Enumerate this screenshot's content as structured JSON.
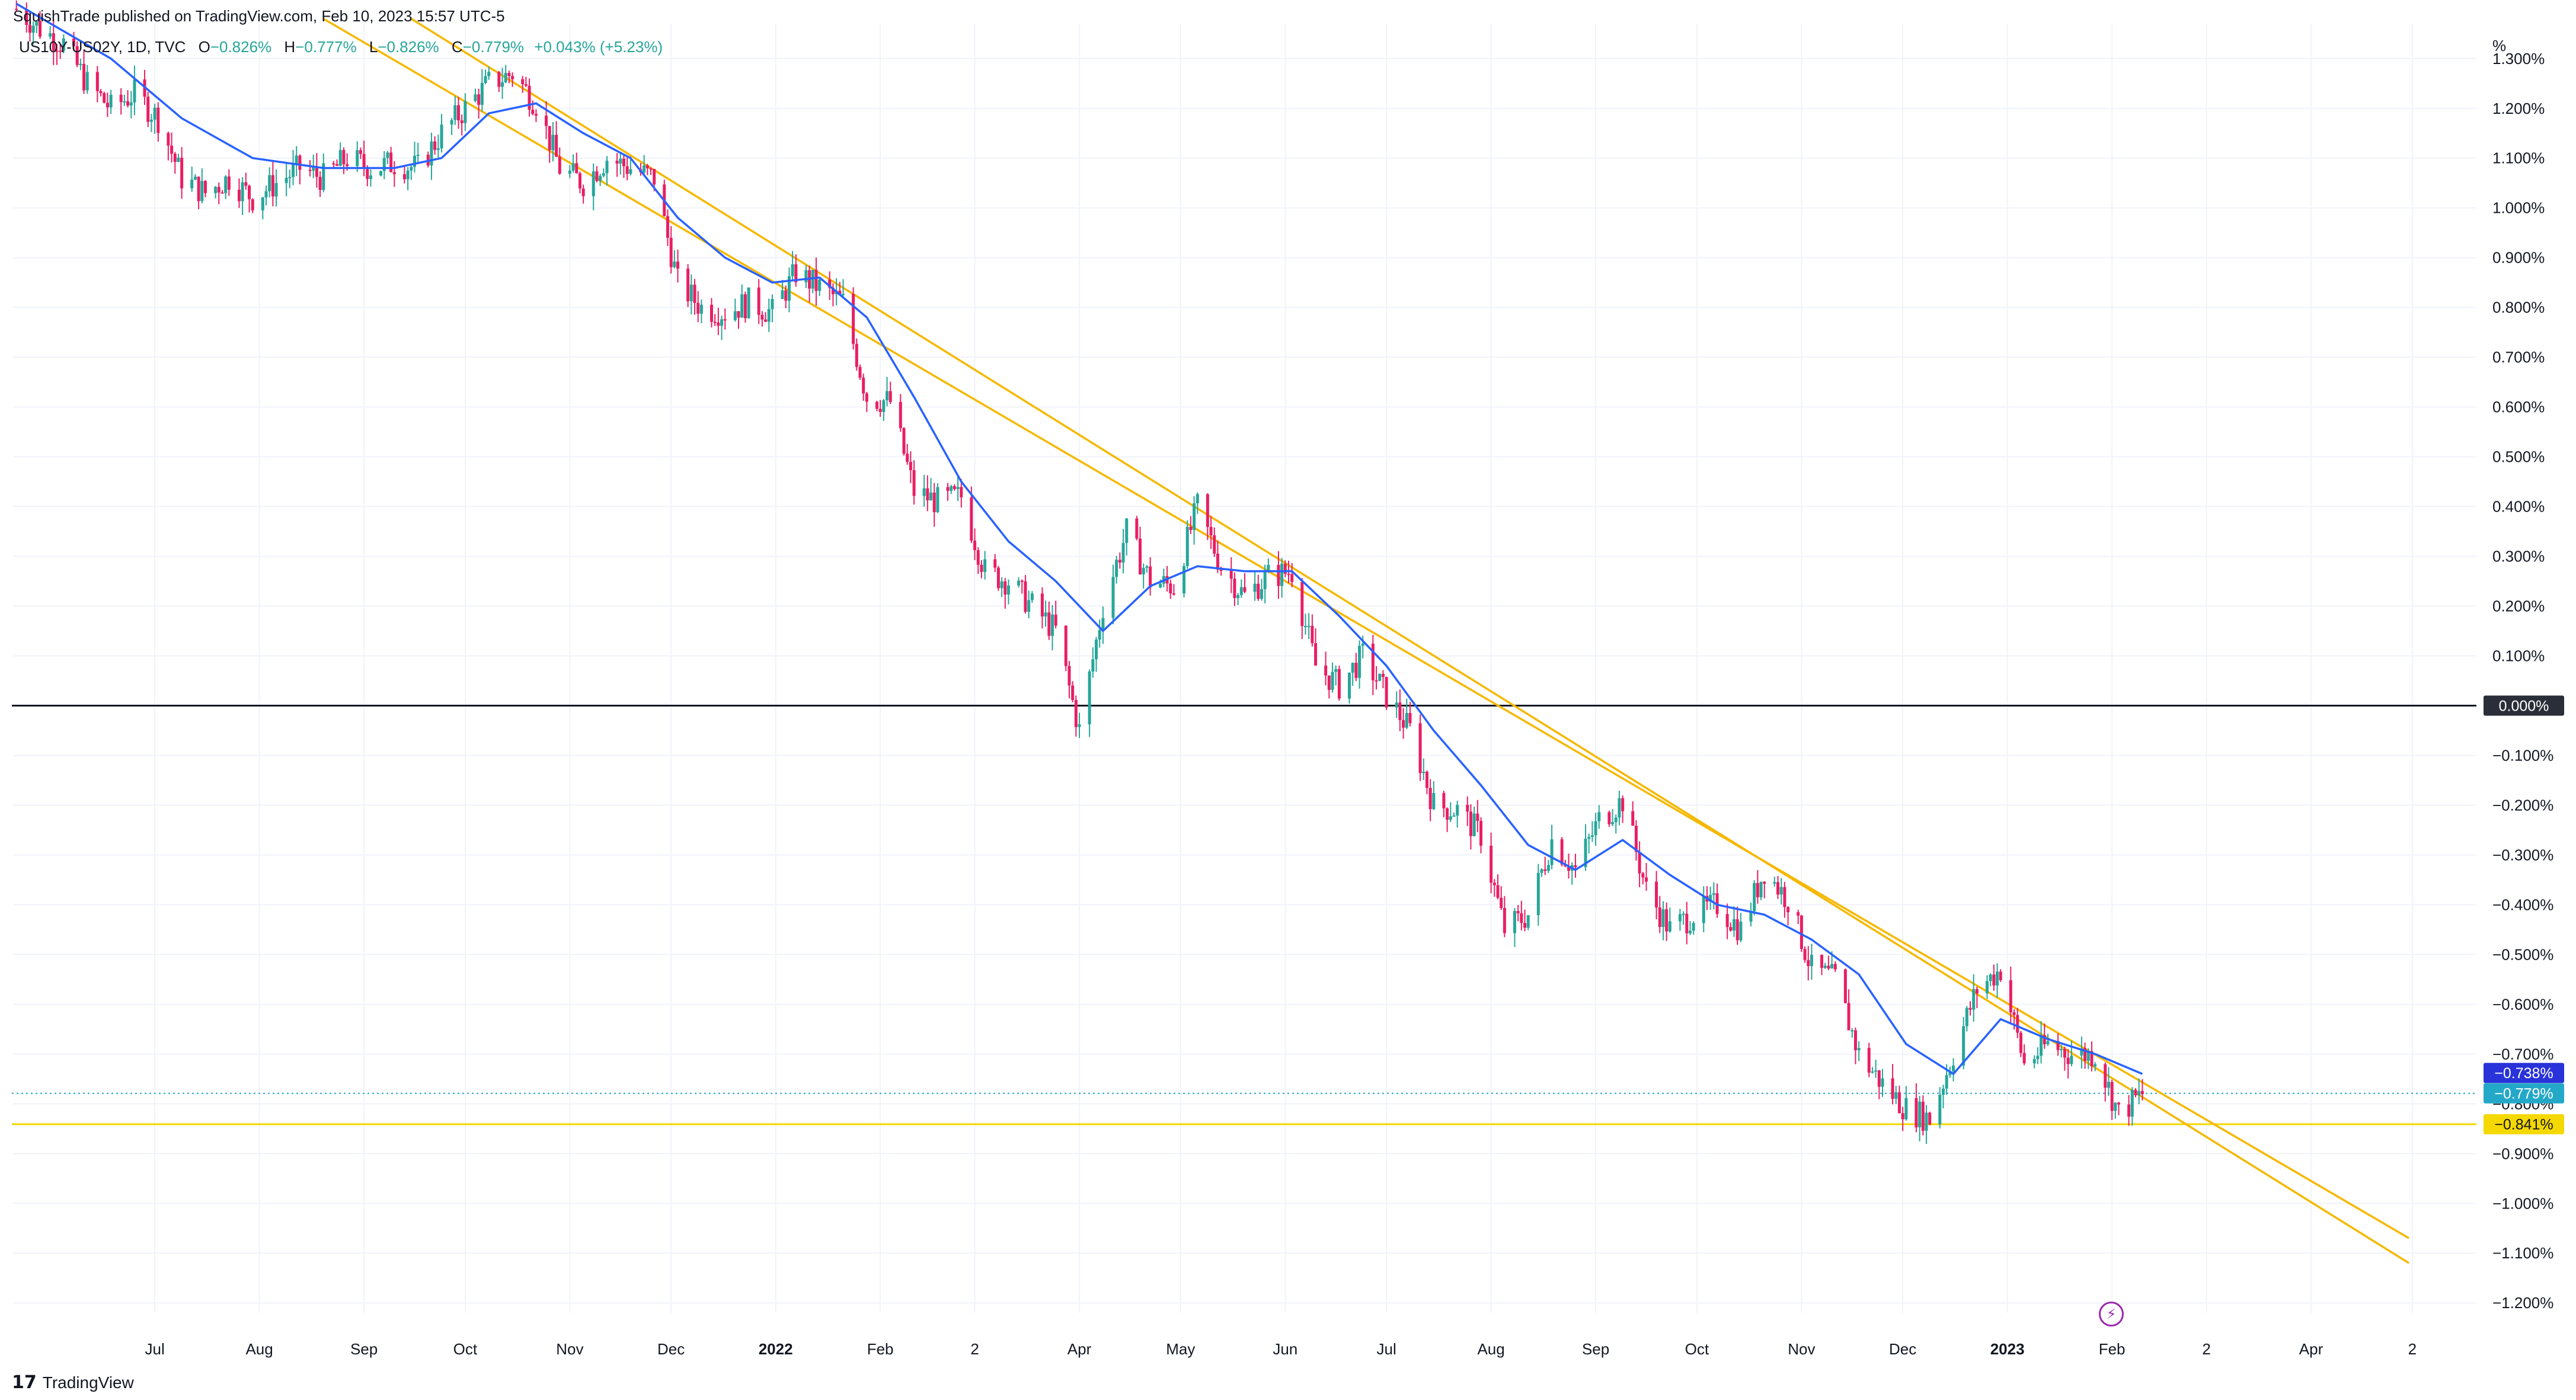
{
  "header": {
    "published": "SquishTrade published on TradingView.com, Feb 10, 2023 15:57 UTC-5"
  },
  "legend": {
    "symbol": "US10Y-US02Y, 1D, TVC",
    "o_label": "O",
    "o_value": "−0.826%",
    "h_label": "H",
    "h_value": "−0.777%",
    "l_label": "L",
    "l_value": "−0.826%",
    "c_label": "C",
    "c_value": "−0.779%",
    "change": "+0.043% (+5.23%)"
  },
  "footer": {
    "brand": "TradingView"
  },
  "icons": {
    "brand_icon": "tradingview-logo",
    "alert_icon": "lightning-bolt-icon"
  },
  "colors": {
    "up": "#26a69a",
    "down": "#e91e63",
    "ma": "#2962ff",
    "trendline": "#f5b800",
    "support": "#f5d800",
    "zero": "#131722",
    "ma_badge": "#2933d9",
    "price_badge": "#24a8c8"
  },
  "chart_data": {
    "type": "candlestick",
    "title": "",
    "unit_label": "%",
    "ylim": [
      -1.22,
      1.37
    ],
    "xlim": [
      "2021-05-20",
      "2023-05-20"
    ],
    "y_ticks": [
      "1.300%",
      "1.200%",
      "1.100%",
      "1.000%",
      "0.900%",
      "0.800%",
      "0.700%",
      "0.600%",
      "0.500%",
      "0.400%",
      "0.300%",
      "0.200%",
      "0.100%",
      "−0.100%",
      "−0.200%",
      "−0.300%",
      "−0.400%",
      "−0.500%",
      "−0.600%",
      "−0.700%",
      "−0.800%",
      "−0.900%",
      "−1.000%",
      "−1.100%",
      "−1.200%"
    ],
    "y_tick_values": [
      1.3,
      1.2,
      1.1,
      1.0,
      0.9,
      0.8,
      0.7,
      0.6,
      0.5,
      0.4,
      0.3,
      0.2,
      0.1,
      -0.1,
      -0.2,
      -0.3,
      -0.4,
      -0.5,
      -0.6,
      -0.7,
      -0.8,
      -0.9,
      -1.0,
      -1.1,
      -1.2
    ],
    "x_ticks": [
      {
        "label": "Jul",
        "date": "2021-07-01",
        "bold": false
      },
      {
        "label": "Aug",
        "date": "2021-08-01",
        "bold": false
      },
      {
        "label": "Sep",
        "date": "2021-09-01",
        "bold": false
      },
      {
        "label": "Oct",
        "date": "2021-10-01",
        "bold": false
      },
      {
        "label": "Nov",
        "date": "2021-11-01",
        "bold": false
      },
      {
        "label": "Dec",
        "date": "2021-12-01",
        "bold": false
      },
      {
        "label": "2022",
        "date": "2022-01-01",
        "bold": true
      },
      {
        "label": "Feb",
        "date": "2022-02-01",
        "bold": false
      },
      {
        "label": "2",
        "date": "2022-03-01",
        "bold": false
      },
      {
        "label": "Apr",
        "date": "2022-04-01",
        "bold": false
      },
      {
        "label": "May",
        "date": "2022-05-01",
        "bold": false
      },
      {
        "label": "Jun",
        "date": "2022-06-01",
        "bold": false
      },
      {
        "label": "Jul",
        "date": "2022-07-01",
        "bold": false
      },
      {
        "label": "Aug",
        "date": "2022-08-01",
        "bold": false
      },
      {
        "label": "Sep",
        "date": "2022-09-01",
        "bold": false
      },
      {
        "label": "Oct",
        "date": "2022-10-01",
        "bold": false
      },
      {
        "label": "Nov",
        "date": "2022-11-01",
        "bold": false
      },
      {
        "label": "Dec",
        "date": "2022-12-01",
        "bold": false
      },
      {
        "label": "2023",
        "date": "2023-01-01",
        "bold": true
      },
      {
        "label": "Feb",
        "date": "2023-02-01",
        "bold": false
      },
      {
        "label": "2",
        "date": "2023-03-01",
        "bold": false
      },
      {
        "label": "Apr",
        "date": "2023-04-01",
        "bold": false
      },
      {
        "label": "2",
        "date": "2023-05-01",
        "bold": false
      }
    ],
    "price_path": [
      [
        "2021-05-21",
        1.4
      ],
      [
        "2021-05-28",
        1.36
      ],
      [
        "2021-06-04",
        1.33
      ],
      [
        "2021-06-11",
        1.25
      ],
      [
        "2021-06-18",
        1.2
      ],
      [
        "2021-06-25",
        1.23
      ],
      [
        "2021-07-02",
        1.18
      ],
      [
        "2021-07-09",
        1.06
      ],
      [
        "2021-07-16",
        1.03
      ],
      [
        "2021-07-23",
        1.06
      ],
      [
        "2021-07-30",
        1.02
      ],
      [
        "2021-08-06",
        1.05
      ],
      [
        "2021-08-13",
        1.08
      ],
      [
        "2021-08-20",
        1.06
      ],
      [
        "2021-08-27",
        1.1
      ],
      [
        "2021-09-03",
        1.08
      ],
      [
        "2021-09-10",
        1.09
      ],
      [
        "2021-09-17",
        1.08
      ],
      [
        "2021-09-24",
        1.15
      ],
      [
        "2021-10-01",
        1.2
      ],
      [
        "2021-10-08",
        1.25
      ],
      [
        "2021-10-15",
        1.27
      ],
      [
        "2021-10-22",
        1.21
      ],
      [
        "2021-10-29",
        1.08
      ],
      [
        "2021-11-05",
        1.05
      ],
      [
        "2021-11-12",
        1.1
      ],
      [
        "2021-11-19",
        1.08
      ],
      [
        "2021-11-26",
        1.06
      ],
      [
        "2021-12-03",
        0.85
      ],
      [
        "2021-12-10",
        0.8
      ],
      [
        "2021-12-17",
        0.79
      ],
      [
        "2021-12-24",
        0.81
      ],
      [
        "2021-12-31",
        0.79
      ],
      [
        "2022-01-07",
        0.87
      ],
      [
        "2022-01-14",
        0.84
      ],
      [
        "2022-01-21",
        0.81
      ],
      [
        "2022-01-28",
        0.62
      ],
      [
        "2022-02-04",
        0.61
      ],
      [
        "2022-02-11",
        0.43
      ],
      [
        "2022-02-18",
        0.41
      ],
      [
        "2022-02-25",
        0.42
      ],
      [
        "2022-03-04",
        0.27
      ],
      [
        "2022-03-11",
        0.25
      ],
      [
        "2022-03-18",
        0.2
      ],
      [
        "2022-03-25",
        0.15
      ],
      [
        "2022-04-01",
        -0.05
      ],
      [
        "2022-04-08",
        0.2
      ],
      [
        "2022-04-15",
        0.35
      ],
      [
        "2022-04-22",
        0.25
      ],
      [
        "2022-04-29",
        0.24
      ],
      [
        "2022-05-06",
        0.4
      ],
      [
        "2022-05-13",
        0.28
      ],
      [
        "2022-05-20",
        0.22
      ],
      [
        "2022-05-27",
        0.26
      ],
      [
        "2022-06-03",
        0.27
      ],
      [
        "2022-06-10",
        0.08
      ],
      [
        "2022-06-17",
        0.04
      ],
      [
        "2022-06-24",
        0.1
      ],
      [
        "2022-07-01",
        0.02
      ],
      [
        "2022-07-08",
        -0.05
      ],
      [
        "2022-07-15",
        -0.2
      ],
      [
        "2022-07-22",
        -0.21
      ],
      [
        "2022-07-29",
        -0.26
      ],
      [
        "2022-08-05",
        -0.45
      ],
      [
        "2022-08-12",
        -0.42
      ],
      [
        "2022-08-19",
        -0.27
      ],
      [
        "2022-08-26",
        -0.33
      ],
      [
        "2022-09-02",
        -0.23
      ],
      [
        "2022-09-09",
        -0.19
      ],
      [
        "2022-09-16",
        -0.37
      ],
      [
        "2022-09-23",
        -0.45
      ],
      [
        "2022-09-30",
        -0.42
      ],
      [
        "2022-10-07",
        -0.4
      ],
      [
        "2022-10-14",
        -0.45
      ],
      [
        "2022-10-21",
        -0.33
      ],
      [
        "2022-10-28",
        -0.39
      ],
      [
        "2022-11-04",
        -0.53
      ],
      [
        "2022-11-11",
        -0.55
      ],
      [
        "2022-11-18",
        -0.7
      ],
      [
        "2022-11-25",
        -0.76
      ],
      [
        "2022-12-02",
        -0.81
      ],
      [
        "2022-12-09",
        -0.83
      ],
      [
        "2022-12-16",
        -0.7
      ],
      [
        "2022-12-23",
        -0.57
      ],
      [
        "2022-12-30",
        -0.53
      ],
      [
        "2023-01-06",
        -0.72
      ],
      [
        "2023-01-13",
        -0.68
      ],
      [
        "2023-01-20",
        -0.7
      ],
      [
        "2023-01-27",
        -0.7
      ],
      [
        "2023-02-03",
        -0.82
      ],
      [
        "2023-02-10",
        -0.78
      ]
    ],
    "moving_average": [
      [
        "2021-05-21",
        1.41
      ],
      [
        "2021-06-18",
        1.3
      ],
      [
        "2021-07-09",
        1.18
      ],
      [
        "2021-07-30",
        1.1
      ],
      [
        "2021-08-20",
        1.08
      ],
      [
        "2021-09-10",
        1.08
      ],
      [
        "2021-09-24",
        1.1
      ],
      [
        "2021-10-08",
        1.19
      ],
      [
        "2021-10-22",
        1.21
      ],
      [
        "2021-11-05",
        1.15
      ],
      [
        "2021-11-19",
        1.1
      ],
      [
        "2021-12-03",
        0.98
      ],
      [
        "2021-12-17",
        0.9
      ],
      [
        "2021-12-31",
        0.85
      ],
      [
        "2022-01-14",
        0.86
      ],
      [
        "2022-01-28",
        0.78
      ],
      [
        "2022-02-11",
        0.62
      ],
      [
        "2022-02-25",
        0.45
      ],
      [
        "2022-03-11",
        0.33
      ],
      [
        "2022-03-25",
        0.25
      ],
      [
        "2022-04-08",
        0.15
      ],
      [
        "2022-04-22",
        0.24
      ],
      [
        "2022-05-06",
        0.28
      ],
      [
        "2022-05-20",
        0.27
      ],
      [
        "2022-06-03",
        0.27
      ],
      [
        "2022-06-17",
        0.18
      ],
      [
        "2022-07-01",
        0.08
      ],
      [
        "2022-07-15",
        -0.05
      ],
      [
        "2022-07-29",
        -0.16
      ],
      [
        "2022-08-12",
        -0.28
      ],
      [
        "2022-08-26",
        -0.33
      ],
      [
        "2022-09-09",
        -0.27
      ],
      [
        "2022-09-23",
        -0.34
      ],
      [
        "2022-10-07",
        -0.4
      ],
      [
        "2022-10-21",
        -0.42
      ],
      [
        "2022-11-04",
        -0.47
      ],
      [
        "2022-11-18",
        -0.54
      ],
      [
        "2022-12-02",
        -0.68
      ],
      [
        "2022-12-16",
        -0.74
      ],
      [
        "2022-12-30",
        -0.63
      ],
      [
        "2023-01-13",
        -0.67
      ],
      [
        "2023-01-27",
        -0.7
      ],
      [
        "2023-02-10",
        -0.74
      ]
    ],
    "trendlines": [
      {
        "from": [
          "2021-08-20",
          1.38
        ],
        "to": [
          "2023-04-30",
          -1.07
        ]
      },
      {
        "from": [
          "2021-09-15",
          1.38
        ],
        "to": [
          "2023-04-30",
          -1.12
        ]
      }
    ],
    "horizontal_lines": [
      {
        "value": 0.0,
        "style": "solid",
        "color": "#131722"
      },
      {
        "value": -0.841,
        "style": "solid",
        "color": "#f5d800"
      },
      {
        "value": -0.779,
        "style": "dotted",
        "color": "#24a8c8"
      }
    ],
    "axis_badges": [
      {
        "value": -0.0,
        "label": "0.000%",
        "color": "#2a2e39"
      },
      {
        "value": -0.738,
        "label": "−0.738%",
        "color": "#2933d9"
      },
      {
        "value": -0.779,
        "label": "−0.779%",
        "color": "#24a8c8"
      },
      {
        "value": -0.841,
        "label": "−0.841%",
        "color": "#f5d800"
      }
    ],
    "grid": true
  }
}
